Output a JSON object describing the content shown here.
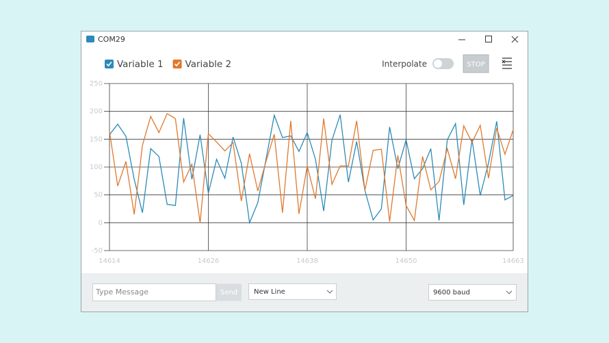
{
  "window": {
    "title": "COM29"
  },
  "controls": {
    "interpolate": "Interpolate",
    "stop": "STOP",
    "message_placeholder": "Type Message",
    "send": "Send",
    "line_ending": "New Line",
    "baud": "9600 baud"
  },
  "chart_data": {
    "type": "line",
    "x": [
      14614,
      14615,
      14616,
      14617,
      14618,
      14619,
      14620,
      14621,
      14622,
      14623,
      14624,
      14625,
      14626,
      14627,
      14628,
      14629,
      14630,
      14631,
      14632,
      14633,
      14634,
      14635,
      14636,
      14637,
      14638,
      14639,
      14640,
      14641,
      14642,
      14643,
      14644,
      14645,
      14646,
      14647,
      14648,
      14649,
      14650,
      14651,
      14652,
      14653,
      14654,
      14655,
      14656,
      14657,
      14658,
      14659,
      14660,
      14661,
      14662,
      14663
    ],
    "series": [
      {
        "name": "Variable 1",
        "color": "#2b8ab8",
        "values": [
          158,
          177,
          155,
          78,
          18,
          133,
          119,
          33,
          31,
          188,
          78,
          158,
          53,
          114,
          80,
          154,
          107,
          0,
          36,
          114,
          193,
          153,
          156,
          128,
          162,
          114,
          21,
          148,
          194,
          73,
          146,
          58,
          5,
          25,
          172,
          97,
          149,
          79,
          97,
          133,
          4,
          149,
          178,
          32,
          150,
          49,
          107,
          182,
          41,
          49
        ]
      },
      {
        "name": "Variable 2",
        "color": "#e0782d",
        "values": [
          164,
          66,
          110,
          15,
          139,
          191,
          162,
          196,
          187,
          73,
          105,
          0,
          160,
          145,
          129,
          144,
          39,
          124,
          57,
          110,
          159,
          18,
          183,
          16,
          102,
          43,
          187,
          69,
          102,
          102,
          183,
          58,
          130,
          132,
          2,
          121,
          31,
          4,
          119,
          59,
          74,
          133,
          79,
          174,
          144,
          175,
          80,
          170,
          123,
          167
        ]
      }
    ],
    "xlim": [
      14614,
      14663
    ],
    "ylim": [
      -50,
      250
    ],
    "xticks": [
      14614,
      14626,
      14638,
      14650,
      14663
    ],
    "yticks": [
      -50,
      0,
      50,
      100,
      150,
      200,
      250
    ],
    "grid": true
  }
}
